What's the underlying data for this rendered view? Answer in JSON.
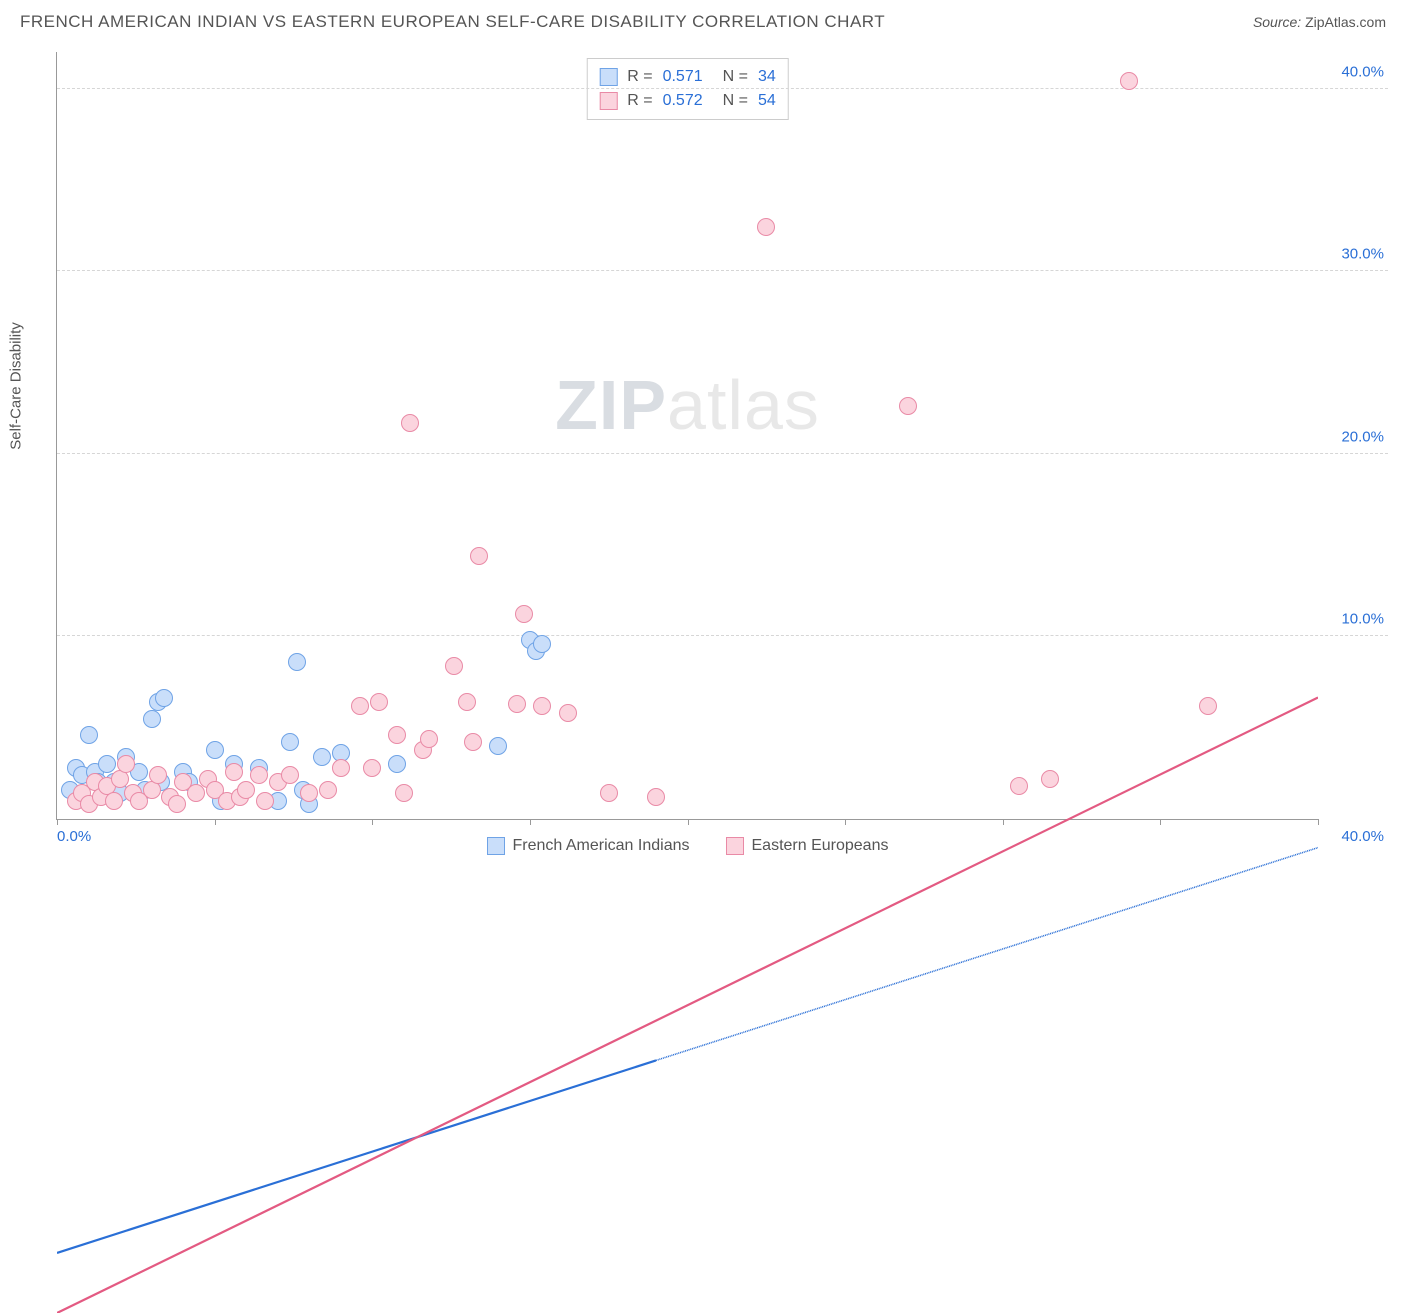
{
  "title": "FRENCH AMERICAN INDIAN VS EASTERN EUROPEAN SELF-CARE DISABILITY CORRELATION CHART",
  "source_label": "Source:",
  "source_value": "ZipAtlas.com",
  "ylabel": "Self-Care Disability",
  "watermark_a": "ZIP",
  "watermark_b": "atlas",
  "chart": {
    "type": "scatter",
    "xlim": [
      0,
      40
    ],
    "ylim": [
      0,
      42
    ],
    "xtick_positions": [
      0,
      5,
      10,
      15,
      20,
      25,
      30,
      35,
      40
    ],
    "xtick_labels_shown": {
      "0": "0.0%",
      "40": "40.0%"
    },
    "ytick_positions": [
      10,
      20,
      30,
      40
    ],
    "ytick_labels": [
      "10.0%",
      "20.0%",
      "30.0%",
      "40.0%"
    ],
    "grid_color": "#d6d6d6",
    "axis_color": "#999999",
    "label_color": "#2a6fd6",
    "background_color": "#ffffff",
    "point_radius": 9,
    "point_border_width": 1.5,
    "series": [
      {
        "id": "french_american_indians",
        "label": "French American Indians",
        "fill": "#c9defa",
        "stroke": "#6fa3e6",
        "line_color": "#2a6fd6",
        "line_dash_after": 19,
        "R_label": "R =",
        "R": "0.571",
        "N_label": "N =",
        "N": "34",
        "trend": {
          "x1": 0,
          "y1": 2.0,
          "x2": 40,
          "y2": 15.5
        },
        "points": [
          [
            0.4,
            1.6
          ],
          [
            0.6,
            2.8
          ],
          [
            0.8,
            2.4
          ],
          [
            1.0,
            4.6
          ],
          [
            1.2,
            2.6
          ],
          [
            1.3,
            2.0
          ],
          [
            1.6,
            3.0
          ],
          [
            1.8,
            2.0
          ],
          [
            2.0,
            1.4
          ],
          [
            2.2,
            3.4
          ],
          [
            2.6,
            2.6
          ],
          [
            2.8,
            1.6
          ],
          [
            3.0,
            5.5
          ],
          [
            3.2,
            6.4
          ],
          [
            3.3,
            2.0
          ],
          [
            3.4,
            6.6
          ],
          [
            4.0,
            2.6
          ],
          [
            4.2,
            2.0
          ],
          [
            5.0,
            3.8
          ],
          [
            5.2,
            1.0
          ],
          [
            5.6,
            3.0
          ],
          [
            6.4,
            2.8
          ],
          [
            7.0,
            1.0
          ],
          [
            7.4,
            4.2
          ],
          [
            7.6,
            8.6
          ],
          [
            7.8,
            1.6
          ],
          [
            8.0,
            0.8
          ],
          [
            8.4,
            3.4
          ],
          [
            9.0,
            3.6
          ],
          [
            10.8,
            3.0
          ],
          [
            14.0,
            4.0
          ],
          [
            15.0,
            9.8
          ],
          [
            15.2,
            9.2
          ],
          [
            15.4,
            9.6
          ]
        ]
      },
      {
        "id": "eastern_europeans",
        "label": "Eastern Europeans",
        "fill": "#fbd4de",
        "stroke": "#e98aa6",
        "line_color": "#e35a82",
        "line_dash_after": 40,
        "R_label": "R =",
        "R": "0.572",
        "N_label": "N =",
        "N": "54",
        "trend": {
          "x1": 0,
          "y1": 0.0,
          "x2": 40,
          "y2": 20.5
        },
        "points": [
          [
            0.6,
            1.0
          ],
          [
            0.8,
            1.4
          ],
          [
            1.0,
            0.8
          ],
          [
            1.2,
            2.0
          ],
          [
            1.4,
            1.2
          ],
          [
            1.6,
            1.8
          ],
          [
            1.8,
            1.0
          ],
          [
            2.0,
            2.2
          ],
          [
            2.2,
            3.0
          ],
          [
            2.4,
            1.4
          ],
          [
            2.6,
            1.0
          ],
          [
            3.0,
            1.6
          ],
          [
            3.2,
            2.4
          ],
          [
            3.6,
            1.2
          ],
          [
            3.8,
            0.8
          ],
          [
            4.0,
            2.0
          ],
          [
            4.4,
            1.4
          ],
          [
            4.8,
            2.2
          ],
          [
            5.0,
            1.6
          ],
          [
            5.4,
            1.0
          ],
          [
            5.6,
            2.6
          ],
          [
            5.8,
            1.2
          ],
          [
            6.0,
            1.6
          ],
          [
            6.4,
            2.4
          ],
          [
            6.6,
            1.0
          ],
          [
            7.0,
            2.0
          ],
          [
            7.4,
            2.4
          ],
          [
            8.0,
            1.4
          ],
          [
            8.6,
            1.6
          ],
          [
            9.0,
            2.8
          ],
          [
            9.6,
            6.2
          ],
          [
            10.0,
            2.8
          ],
          [
            10.2,
            6.4
          ],
          [
            10.8,
            4.6
          ],
          [
            11.0,
            1.4
          ],
          [
            11.2,
            21.7
          ],
          [
            11.6,
            3.8
          ],
          [
            11.8,
            4.4
          ],
          [
            12.6,
            8.4
          ],
          [
            13.0,
            6.4
          ],
          [
            13.2,
            4.2
          ],
          [
            13.4,
            14.4
          ],
          [
            14.6,
            6.3
          ],
          [
            14.8,
            11.2
          ],
          [
            15.4,
            6.2
          ],
          [
            16.2,
            5.8
          ],
          [
            17.5,
            1.4
          ],
          [
            19.0,
            1.2
          ],
          [
            22.5,
            32.4
          ],
          [
            27.0,
            22.6
          ],
          [
            30.5,
            1.8
          ],
          [
            31.5,
            2.2
          ],
          [
            34.0,
            40.4
          ],
          [
            36.5,
            6.2
          ]
        ]
      }
    ]
  }
}
